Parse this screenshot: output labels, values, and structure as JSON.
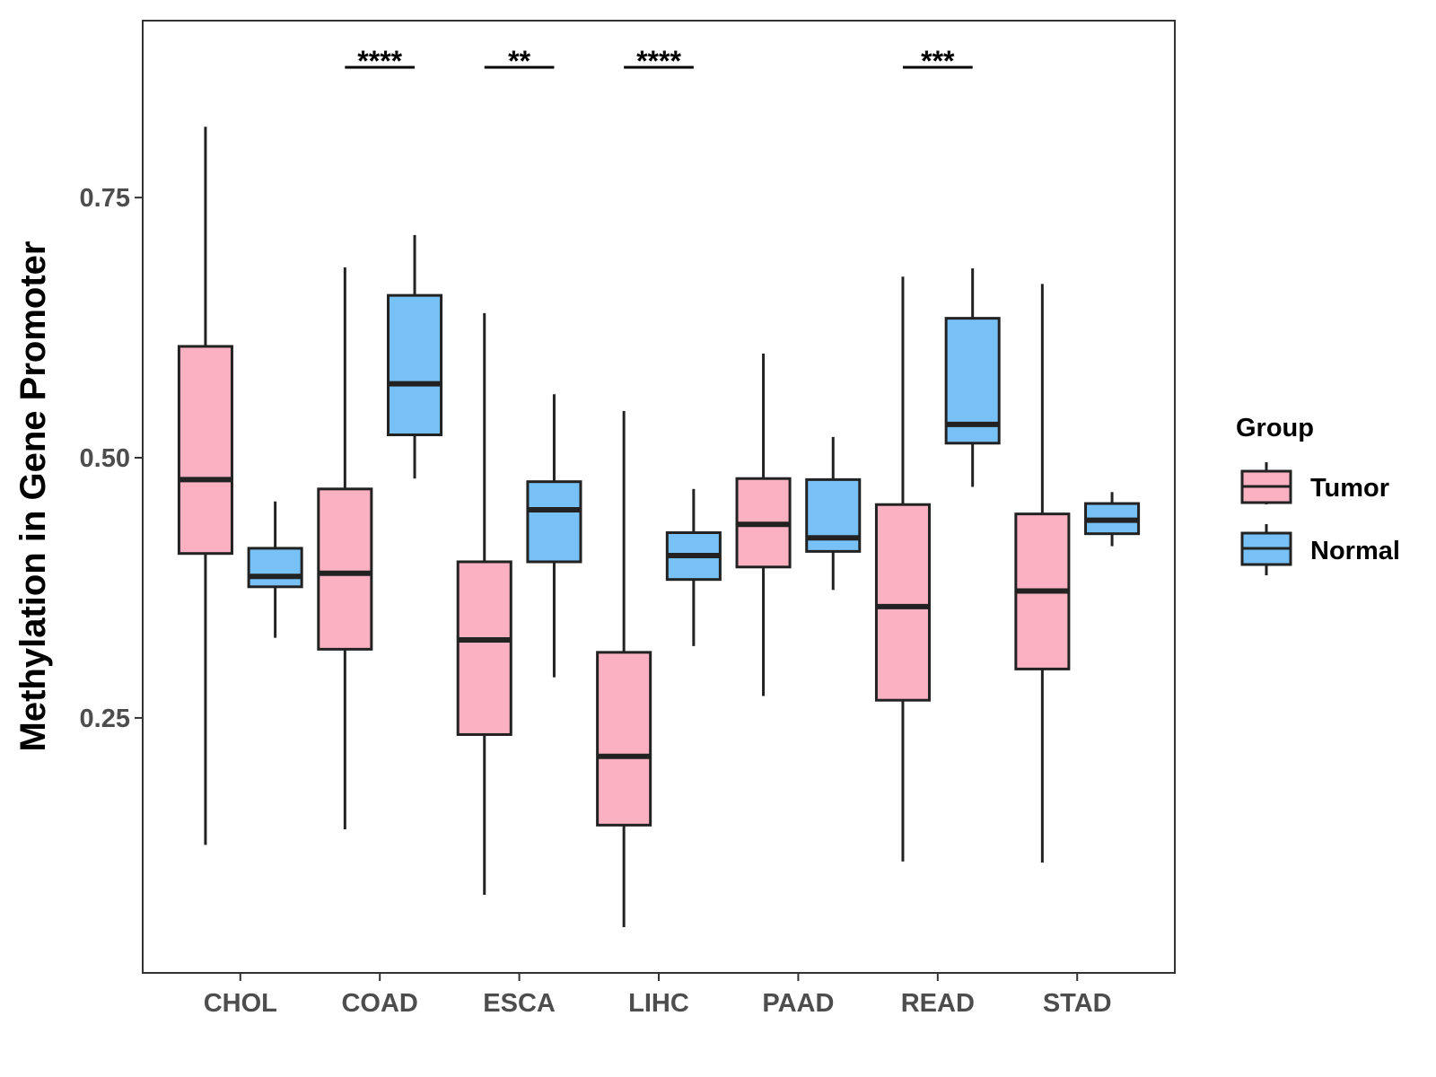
{
  "chart_data": {
    "type": "boxplot",
    "title": "",
    "xlabel": "",
    "ylabel": "Methylation in Gene Promoter",
    "ylim": [
      0.005,
      0.92
    ],
    "yticks": [
      0.25,
      0.5,
      0.75
    ],
    "ytick_labels": [
      "0.25",
      "0.50",
      "0.75"
    ],
    "categories": [
      "CHOL",
      "COAD",
      "ESCA",
      "LIHC",
      "PAAD",
      "READ",
      "STAD"
    ],
    "grid": false,
    "legend": {
      "title": "Group",
      "position": "right",
      "entries": [
        {
          "name": "Tumor",
          "color": "#FBB1C2"
        },
        {
          "name": "Normal",
          "color": "#78C1F7"
        }
      ]
    },
    "series": [
      {
        "name": "Tumor",
        "color": "#FBB1C2",
        "boxes": [
          {
            "category": "CHOL",
            "min": 0.128,
            "q1": 0.408,
            "median": 0.479,
            "q3": 0.607,
            "max": 0.818
          },
          {
            "category": "COAD",
            "min": 0.143,
            "q1": 0.316,
            "median": 0.389,
            "q3": 0.47,
            "max": 0.683
          },
          {
            "category": "ESCA",
            "min": 0.08,
            "q1": 0.234,
            "median": 0.325,
            "q3": 0.4,
            "max": 0.639
          },
          {
            "category": "LIHC",
            "min": 0.049,
            "q1": 0.147,
            "median": 0.213,
            "q3": 0.313,
            "max": 0.545
          },
          {
            "category": "PAAD",
            "min": 0.271,
            "q1": 0.395,
            "median": 0.436,
            "q3": 0.48,
            "max": 0.6
          },
          {
            "category": "READ",
            "min": 0.112,
            "q1": 0.267,
            "median": 0.357,
            "q3": 0.455,
            "max": 0.674
          },
          {
            "category": "STAD",
            "min": 0.111,
            "q1": 0.297,
            "median": 0.372,
            "q3": 0.446,
            "max": 0.667
          }
        ]
      },
      {
        "name": "Normal",
        "color": "#78C1F7",
        "boxes": [
          {
            "category": "CHOL",
            "min": 0.327,
            "q1": 0.376,
            "median": 0.386,
            "q3": 0.413,
            "max": 0.458
          },
          {
            "category": "COAD",
            "min": 0.48,
            "q1": 0.522,
            "median": 0.571,
            "q3": 0.656,
            "max": 0.714
          },
          {
            "category": "ESCA",
            "min": 0.289,
            "q1": 0.4,
            "median": 0.45,
            "q3": 0.477,
            "max": 0.561
          },
          {
            "category": "LIHC",
            "min": 0.319,
            "q1": 0.383,
            "median": 0.406,
            "q3": 0.428,
            "max": 0.47
          },
          {
            "category": "PAAD",
            "min": 0.373,
            "q1": 0.41,
            "median": 0.423,
            "q3": 0.479,
            "max": 0.52
          },
          {
            "category": "READ",
            "min": 0.472,
            "q1": 0.514,
            "median": 0.532,
            "q3": 0.634,
            "max": 0.682
          },
          {
            "category": "STAD",
            "min": 0.415,
            "q1": 0.427,
            "median": 0.44,
            "q3": 0.456,
            "max": 0.467
          }
        ]
      }
    ],
    "annotations": [
      {
        "category": "COAD",
        "label": "****"
      },
      {
        "category": "ESCA",
        "label": "**"
      },
      {
        "category": "LIHC",
        "label": "****"
      },
      {
        "category": "READ",
        "label": "***"
      }
    ]
  }
}
